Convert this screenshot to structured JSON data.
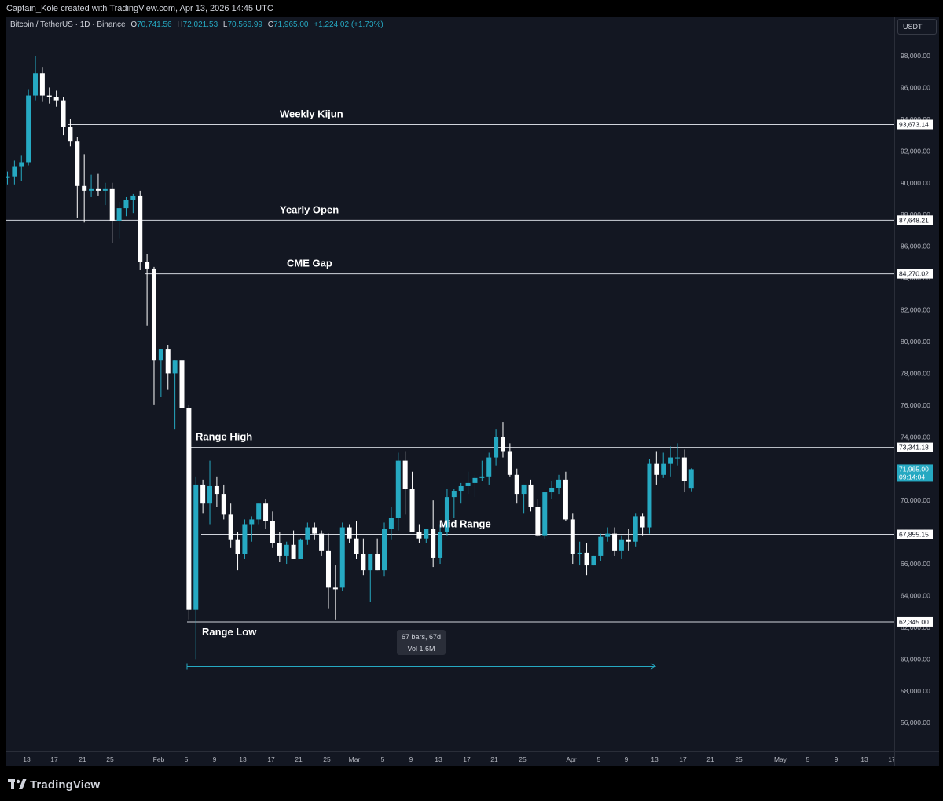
{
  "credit": "Captain_Kole created with TradingView.com, Apr 13, 2026 14:45 UTC",
  "legend": {
    "symbol": "Bitcoin / TetherUS · 1D · Binance",
    "o_label": "O",
    "o": "70,741.56",
    "h_label": "H",
    "h": "72,021.53",
    "l_label": "L",
    "l": "70,566.99",
    "c_label": "C",
    "c": "71,965.00",
    "change": "+1,224.02 (+1.73%)"
  },
  "currency_button": "USDT",
  "price_axis": {
    "ticks": [
      "98,000.00",
      "96,000.00",
      "94,000.00",
      "92,000.00",
      "90,000.00",
      "88,000.00",
      "86,000.00",
      "84,000.00",
      "82,000.00",
      "80,000.00",
      "78,000.00",
      "76,000.00",
      "74,000.00",
      "72,000.00",
      "70,000.00",
      "68,000.00",
      "66,000.00",
      "64,000.00",
      "62,000.00",
      "60,000.00",
      "58,000.00",
      "56,000.00"
    ]
  },
  "time_axis": {
    "ticks": [
      "13",
      "17",
      "21",
      "25",
      "Feb",
      "5",
      "9",
      "13",
      "17",
      "21",
      "25",
      "Mar",
      "5",
      "9",
      "13",
      "17",
      "21",
      "25",
      "Apr",
      "5",
      "9",
      "13",
      "17",
      "21",
      "25",
      "May",
      "5",
      "9",
      "13",
      "17"
    ]
  },
  "levels": [
    {
      "name": "Weekly Kijun",
      "price": 93673.14,
      "price_label": "93,673.14"
    },
    {
      "name": "Yearly Open",
      "price": 87648.21,
      "price_label": "87,648.21"
    },
    {
      "name": "CME Gap",
      "price": 84270.02,
      "price_label": "84,270.02"
    },
    {
      "name": "Range High",
      "price": 73341.18,
      "price_label": "73,341.18"
    },
    {
      "name": "Mid Range",
      "price": 67855.15,
      "price_label": "67,855.15"
    },
    {
      "name": "Range Low",
      "price": 62345.0,
      "price_label": "62,345.00"
    }
  ],
  "current_price": {
    "price": 71965.0,
    "label": "71,965.00",
    "countdown": "09:14:04",
    "color": "#26a9c2"
  },
  "measure": {
    "bars": "67 bars, 67d",
    "vol": "Vol 1.6M"
  },
  "colors": {
    "up": "#26a9c2",
    "down": "#ffffff",
    "background": "#131722",
    "level_line": "#d1d4dc"
  },
  "branding": {
    "logo_text": "TradingView"
  },
  "chart_data": {
    "type": "candlestick",
    "title": "Bitcoin / TetherUS · 1D · Binance",
    "y_range": [
      55000,
      99500
    ],
    "candles": [
      [
        90300,
        90700,
        89900,
        90400
      ],
      [
        90400,
        91400,
        89900,
        91000
      ],
      [
        91000,
        91700,
        90100,
        91300
      ],
      [
        91300,
        95900,
        91100,
        95500
      ],
      [
        95500,
        98000,
        95200,
        96900
      ],
      [
        96900,
        97300,
        95100,
        95500
      ],
      [
        95500,
        96000,
        95000,
        95400
      ],
      [
        95400,
        95800,
        94800,
        95200
      ],
      [
        95200,
        95400,
        93000,
        93500
      ],
      [
        93500,
        94000,
        92300,
        92600
      ],
      [
        92600,
        92900,
        87800,
        89800
      ],
      [
        89800,
        91800,
        87500,
        89500
      ],
      [
        89500,
        90500,
        89100,
        89600
      ],
      [
        89600,
        90600,
        89200,
        89500
      ],
      [
        89500,
        90000,
        88600,
        89600
      ],
      [
        89600,
        90000,
        86200,
        87600
      ],
      [
        87600,
        88800,
        86500,
        88400
      ],
      [
        88400,
        89100,
        87900,
        88900
      ],
      [
        88900,
        89300,
        88100,
        89200
      ],
      [
        89200,
        89500,
        84500,
        85000
      ],
      [
        85000,
        85500,
        81000,
        84600
      ],
      [
        84600,
        84700,
        76000,
        78800
      ],
      [
        78800,
        79500,
        76500,
        79500
      ],
      [
        79500,
        79800,
        77000,
        78000
      ],
      [
        78000,
        78800,
        74500,
        78800
      ],
      [
        78800,
        79300,
        73500,
        75800
      ],
      [
        75800,
        76000,
        62500,
        63100
      ],
      [
        63100,
        71500,
        60000,
        71000
      ],
      [
        71000,
        71300,
        69200,
        69800
      ],
      [
        69800,
        72500,
        68500,
        70900
      ],
      [
        70900,
        71500,
        69600,
        70400
      ],
      [
        70400,
        71000,
        68800,
        69100
      ],
      [
        69100,
        69800,
        67000,
        67500
      ],
      [
        67500,
        68000,
        65600,
        66600
      ],
      [
        66600,
        68800,
        66300,
        68500
      ],
      [
        68500,
        69000,
        67400,
        68800
      ],
      [
        68800,
        69800,
        68500,
        69800
      ],
      [
        69800,
        70100,
        68200,
        68700
      ],
      [
        68700,
        69300,
        67000,
        67300
      ],
      [
        67300,
        68000,
        66100,
        66500
      ],
      [
        66500,
        67400,
        66000,
        67200
      ],
      [
        67200,
        68100,
        66300,
        66300
      ],
      [
        66300,
        67600,
        66300,
        67500
      ],
      [
        67500,
        68600,
        67200,
        68300
      ],
      [
        68300,
        68600,
        67500,
        67900
      ],
      [
        67900,
        68100,
        66500,
        66800
      ],
      [
        66800,
        67900,
        63200,
        64500
      ],
      [
        64500,
        65900,
        62500,
        64400
      ],
      [
        64500,
        68600,
        64300,
        68300
      ],
      [
        68300,
        68500,
        67300,
        67600
      ],
      [
        67600,
        68700,
        66300,
        66600
      ],
      [
        66600,
        67600,
        65300,
        65600
      ],
      [
        65600,
        66600,
        63600,
        66600
      ],
      [
        66600,
        67600,
        65600,
        65600
      ],
      [
        65600,
        68600,
        65200,
        68200
      ],
      [
        68200,
        69600,
        67500,
        68900
      ],
      [
        68900,
        73000,
        68100,
        72500
      ],
      [
        72500,
        73100,
        69100,
        70700
      ],
      [
        70700,
        71800,
        68000,
        68000
      ],
      [
        68000,
        68500,
        67300,
        67600
      ],
      [
        67600,
        68200,
        67300,
        68200
      ],
      [
        68200,
        70000,
        65800,
        66400
      ],
      [
        66400,
        68500,
        66000,
        68000
      ],
      [
        68000,
        70700,
        67800,
        70200
      ],
      [
        70200,
        70700,
        68900,
        70600
      ],
      [
        70600,
        71100,
        69800,
        70900
      ],
      [
        70900,
        71800,
        70400,
        71100
      ],
      [
        71100,
        71600,
        70200,
        71400
      ],
      [
        71400,
        72500,
        71200,
        71500
      ],
      [
        71500,
        73000,
        71000,
        72700
      ],
      [
        72700,
        74500,
        72200,
        74000
      ],
      [
        74000,
        74900,
        72700,
        73100
      ],
      [
        73100,
        73600,
        71500,
        71600
      ],
      [
        71600,
        72000,
        69800,
        70400
      ],
      [
        70400,
        71000,
        69200,
        71000
      ],
      [
        71000,
        71300,
        69300,
        69600
      ],
      [
        69600,
        70100,
        67700,
        67800
      ],
      [
        67800,
        70500,
        67600,
        70500
      ],
      [
        70500,
        71200,
        70100,
        70800
      ],
      [
        70800,
        71600,
        70400,
        71300
      ],
      [
        71300,
        71800,
        68700,
        68800
      ],
      [
        68800,
        69200,
        66000,
        66600
      ],
      [
        66600,
        67400,
        65900,
        66700
      ],
      [
        66700,
        67300,
        65300,
        65900
      ],
      [
        65900,
        66500,
        65900,
        66500
      ],
      [
        66500,
        67900,
        66200,
        67700
      ],
      [
        67700,
        68300,
        67400,
        67900
      ],
      [
        67900,
        68300,
        66500,
        66800
      ],
      [
        66800,
        67800,
        66300,
        67500
      ],
      [
        67500,
        68200,
        66800,
        67400
      ],
      [
        67400,
        69200,
        67100,
        69000
      ],
      [
        69000,
        69200,
        67800,
        68300
      ],
      [
        68300,
        72600,
        67900,
        72300
      ],
      [
        72300,
        73100,
        71000,
        71600
      ],
      [
        71600,
        73000,
        71400,
        72300
      ],
      [
        72300,
        73400,
        71500,
        72700
      ],
      [
        72700,
        73600,
        72200,
        72700
      ],
      [
        72700,
        73200,
        70500,
        71200
      ],
      [
        70741.56,
        72021.53,
        70566.99,
        71965.0
      ]
    ]
  }
}
